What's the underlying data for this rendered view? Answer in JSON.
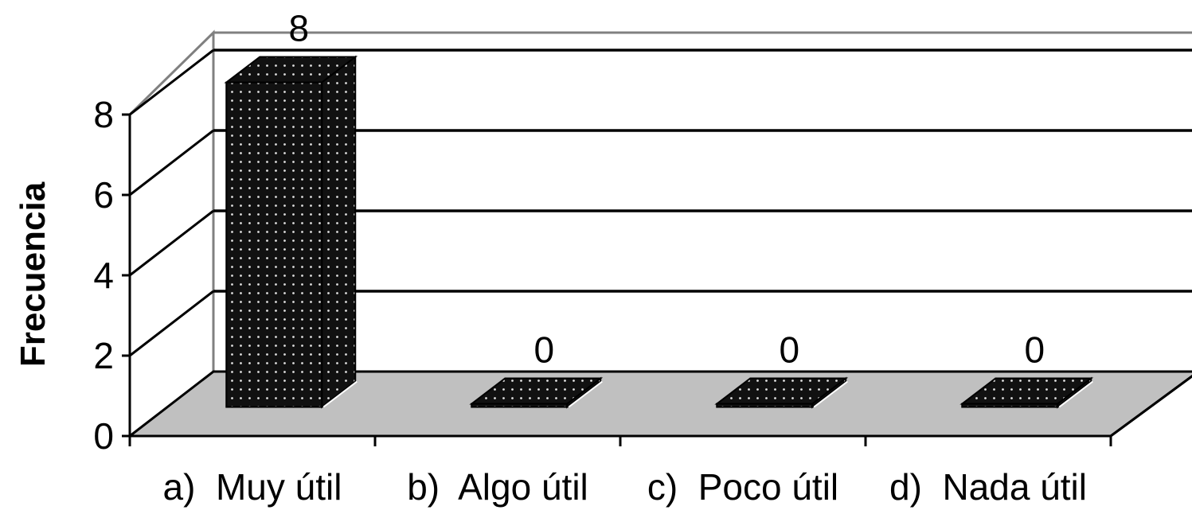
{
  "chart_data": {
    "type": "bar",
    "style": "3d",
    "categories": [
      "a)  Muy útil",
      "b)  Algo útil",
      "c)  Poco útil",
      "d)  Nada útil"
    ],
    "values": [
      8,
      0,
      0,
      0
    ],
    "data_labels": [
      "8",
      "0",
      "0",
      "0"
    ],
    "title": "",
    "xlabel": "",
    "ylabel": "Frecuencia",
    "ylim": [
      0,
      8
    ],
    "yticks": [
      "0",
      "2",
      "4",
      "6",
      "8"
    ],
    "grid": true,
    "legend": "none",
    "colors": {
      "bar": "#111111",
      "bar_dots": "#e0e0e0",
      "floor": "#c0c0c0",
      "wall": "#ffffff",
      "walls_edge": "#808080"
    }
  }
}
